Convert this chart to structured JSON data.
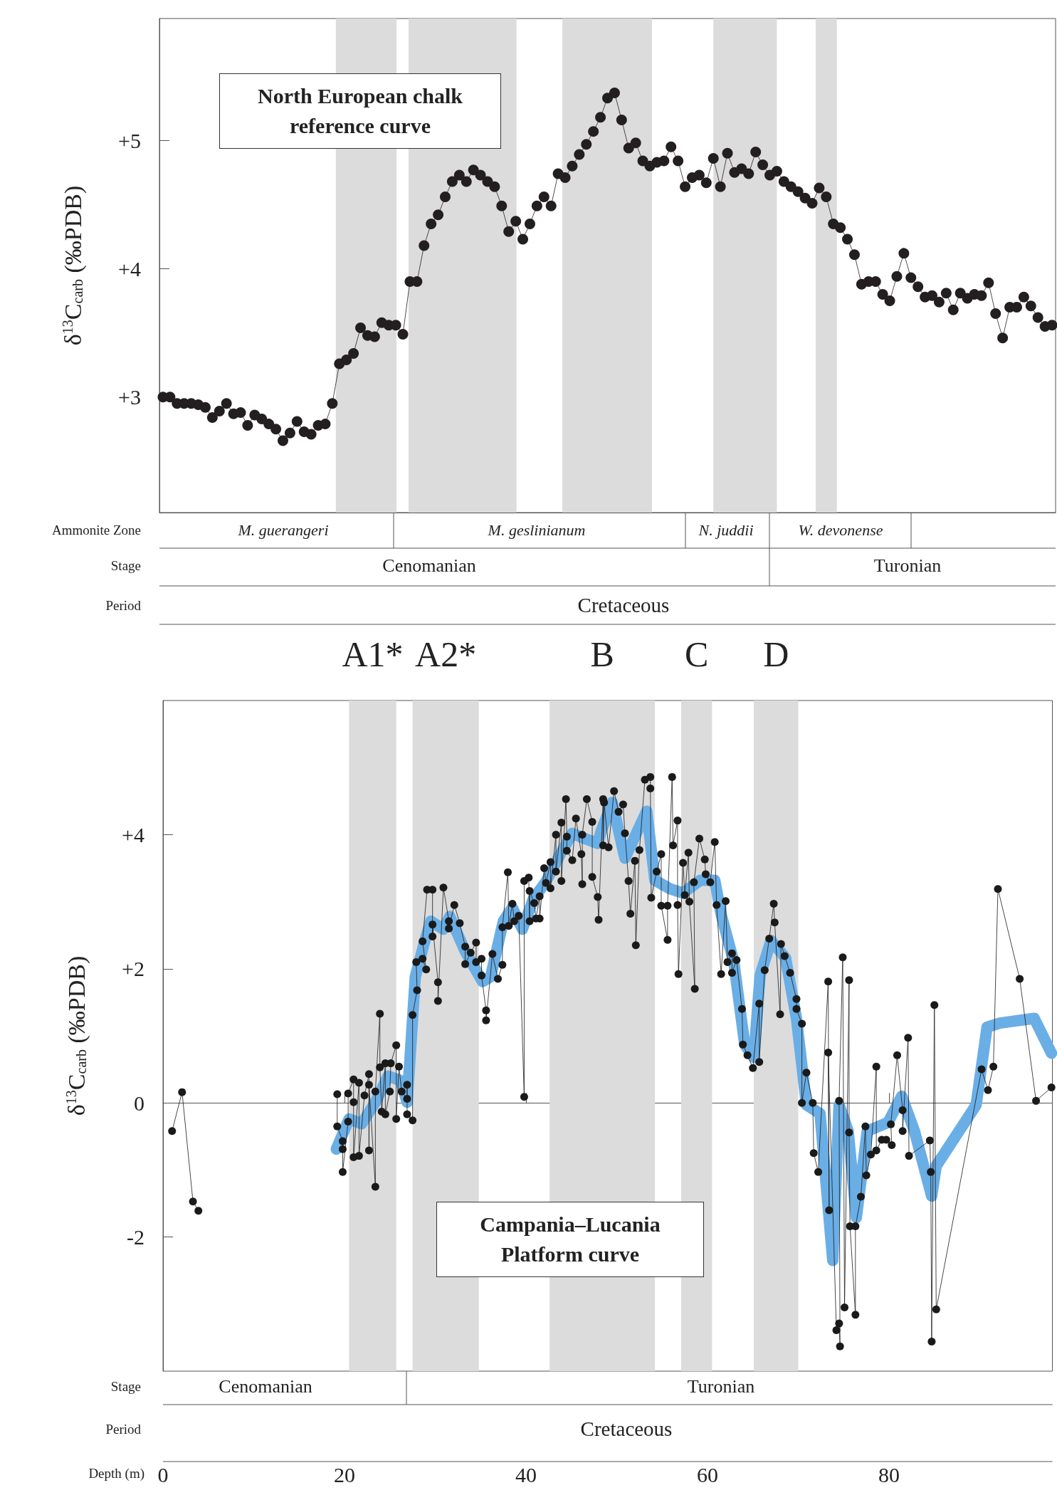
{
  "chart_data": [
    {
      "type": "line",
      "title": "North European chalk reference curve",
      "ylabel": "δ$^{13}$C$_{carb}$ (‰PDB)",
      "categories": [
        null,
        null,
        null,
        null,
        null,
        null,
        null,
        null,
        null,
        null,
        null,
        null,
        null,
        null,
        null,
        null,
        null,
        null,
        null,
        null,
        null,
        null,
        null,
        null,
        null,
        null,
        null,
        null,
        null,
        null,
        null,
        null,
        null,
        null,
        null,
        null,
        null,
        null,
        null,
        null,
        null,
        null,
        null,
        null,
        null,
        null,
        null,
        null,
        null,
        null,
        null,
        null,
        null,
        null,
        null,
        null,
        null,
        null,
        null,
        null,
        null,
        null,
        null,
        null,
        null,
        null,
        null,
        null,
        null,
        null,
        null,
        null,
        null,
        null,
        null,
        null,
        null,
        null,
        null,
        null,
        null,
        null,
        null,
        null,
        null,
        null,
        null,
        null,
        null,
        null,
        null,
        null,
        null,
        null,
        null,
        null,
        null,
        null,
        null,
        null,
        null,
        null,
        null,
        null,
        null,
        null,
        null,
        null,
        null,
        null,
        null,
        null,
        null,
        null,
        null,
        null,
        null,
        null,
        null,
        null,
        null,
        null,
        null,
        null,
        null,
        null,
        null
      ],
      "ylim": [
        2.1,
        5.95
      ],
      "yticks": [
        {
          "value": 3,
          "label": "+3"
        },
        {
          "value": 4,
          "label": "+4"
        },
        {
          "value": 5,
          "label": "+5"
        }
      ],
      "tick_labels": "y",
      "marker": "circle",
      "line_style": "solid",
      "series": [
        {
          "color": "#231f20",
          "values": [
            3.0,
            3.0,
            2.95,
            2.95,
            2.95,
            2.94,
            2.92,
            2.84,
            2.89,
            2.95,
            2.87,
            2.88,
            2.78,
            2.86,
            2.83,
            2.79,
            2.75,
            2.66,
            2.72,
            2.81,
            2.73,
            2.71,
            2.78,
            2.79,
            2.95,
            3.26,
            3.29,
            3.34,
            3.54,
            3.48,
            3.47,
            3.58,
            3.56,
            3.56,
            3.49,
            3.9,
            3.9,
            4.18,
            4.35,
            4.42,
            4.56,
            4.68,
            4.73,
            4.68,
            4.77,
            4.73,
            4.68,
            4.64,
            4.49,
            4.29,
            4.37,
            4.23,
            4.35,
            4.49,
            4.56,
            4.49,
            4.74,
            4.71,
            4.8,
            4.89,
            4.97,
            5.07,
            5.18,
            5.33,
            5.37,
            5.16,
            4.94,
            4.98,
            4.84,
            4.8,
            4.83,
            4.84,
            4.95,
            4.84,
            4.64,
            4.71,
            4.73,
            4.67,
            4.86,
            4.64,
            4.9,
            4.75,
            4.78,
            4.74,
            4.91,
            4.81,
            4.73,
            4.76,
            4.68,
            4.64,
            4.6,
            4.55,
            4.51,
            4.63,
            4.56,
            4.35,
            4.32,
            4.23,
            4.11,
            3.88,
            3.9,
            3.9,
            3.8,
            3.75,
            3.94,
            4.12,
            3.93,
            3.86,
            3.78,
            3.79,
            3.74,
            3.81,
            3.68,
            3.81,
            3.77,
            3.8,
            3.79,
            3.89,
            3.65,
            3.46,
            3.7,
            3.7,
            3.78,
            3.71,
            3.62,
            3.55,
            3.56
          ]
        }
      ],
      "annotations": [
        "Ammonite Zone",
        "M. guerangeri",
        "M. geslinianum",
        "N. juddii",
        "W. devonense",
        "Stage",
        "Cenomanian",
        "Turonian",
        "Period",
        "Cretaceous"
      ]
    },
    {
      "type": "line",
      "title": "Campania–Lucania Platform curve",
      "xlabel": "Depth (m)",
      "ylabel": "δ$^{13}$C$_{carb}$ (‰PDB)",
      "xlim": [
        0,
        98
      ],
      "xticks": [
        0,
        20,
        40,
        60,
        80
      ],
      "ylim": [
        -4,
        6
      ],
      "yticks": [
        {
          "value": -2,
          "label": "-2"
        },
        0,
        {
          "value": 2,
          "label": "+2"
        },
        {
          "value": 4,
          "label": "+4"
        }
      ],
      "marker": "circle",
      "line_style": "solid",
      "series": [
        {
          "color": "#6aaee6",
          "marker": "none",
          "x": [
            19.1,
            20.5,
            21.9,
            23.4,
            24.8,
            26.2,
            26.9,
            27.4,
            27.8,
            28.8,
            29.5,
            30.9,
            31.6,
            33.3,
            35.2,
            36.1,
            37.5,
            38.5,
            39.6,
            40.8,
            42.2,
            43.9,
            45.1,
            46.5,
            47.9,
            48.3,
            49.5,
            50.9,
            53.3,
            54.2,
            55.9,
            57.3,
            59.2,
            60.8,
            61.5,
            62.9,
            64.1,
            65.1,
            65.8,
            67.0,
            68.6,
            69.8,
            70.9,
            72.4,
            73.8,
            74.5,
            75.5,
            76.4,
            77.6,
            79.9,
            81.4,
            82.8,
            84.7,
            85.2,
            89.6,
            90.8,
            92.2,
            96.0,
            97.9
          ],
          "values": [
            -0.69,
            -0.24,
            -0.31,
            0.01,
            0.4,
            0.33,
            0.01,
            1.04,
            1.88,
            2.39,
            2.71,
            2.59,
            2.78,
            2.26,
            1.81,
            1.88,
            2.71,
            2.91,
            2.59,
            3.04,
            3.3,
            3.74,
            4.02,
            3.94,
            3.87,
            4.06,
            4.48,
            3.65,
            4.35,
            3.32,
            3.19,
            3.13,
            3.32,
            3.32,
            2.81,
            2.1,
            0.87,
            0.68,
            1.9,
            2.42,
            2.16,
            1.26,
            -0.03,
            -0.16,
            -2.35,
            -0.03,
            -0.42,
            -1.71,
            -0.42,
            -0.29,
            0.1,
            -0.42,
            -1.39,
            -0.94,
            -0.03,
            1.13,
            1.19,
            1.26,
            0.74
          ]
        },
        {
          "color": "#1a1a1a",
          "x": [
            1.0,
            2.1,
            3.3,
            3.9,
            10,
            19.2,
            19.2,
            19.8,
            19.8,
            19.8,
            20.4,
            20.4,
            21.0,
            21.0,
            21.0,
            21.6,
            21.6,
            22.2,
            22.7,
            22.7,
            22.7,
            23.4,
            23.4,
            23.9,
            23.9,
            24.1,
            24.5,
            24.5,
            25.0,
            25.1,
            25.7,
            25.7,
            26.0,
            26.3,
            26.9,
            26.9,
            26.9,
            27.5,
            27.5,
            28.0,
            27.9,
            28.6,
            29.0,
            28.6,
            29.1,
            29.7,
            29.7,
            29.7,
            30.3,
            30.3,
            30.9,
            31.5,
            31.5,
            32.1,
            32.7,
            33.3,
            33.3,
            33.9,
            34.5,
            34.5,
            35.1,
            35.1,
            35.6,
            35.6,
            36.3,
            36.9,
            37.4,
            37.4,
            38.0,
            38.1,
            38.5,
            38.7,
            39.2,
            39.8,
            39.8,
            40.3,
            40.4,
            40.4,
            40.9,
            41.1,
            41.5,
            41.5,
            42.0,
            42.2,
            42.7,
            42.7,
            43.3,
            43.3,
            43.9,
            43.9,
            44.4,
            44.5,
            44.5,
            45.1,
            45.5,
            46.1,
            46.2,
            46.2,
            46.7,
            47.3,
            47.3,
            47.9,
            48.0,
            48.5,
            48.5,
            48.6,
            49.1,
            49.7,
            50.2,
            50.7,
            50.9,
            51.3,
            51.5,
            52.0,
            52.1,
            52.5,
            53.1,
            53.7,
            53.7,
            53.8,
            54.4,
            54.9,
            54.9,
            55.6,
            55.6,
            56.1,
            56.2,
            56.7,
            56.7,
            56.8,
            57.3,
            57.5,
            57.9,
            58.0,
            58.6,
            58.5,
            59.1,
            59.7,
            59.8,
            60.3,
            60.8,
            61.0,
            61.5,
            62.0,
            62.2,
            62.7,
            62.7,
            63.2,
            63.8,
            63.9,
            64.4,
            65.0,
            65.7,
            65.7,
            66.3,
            66.8,
            67.3,
            67.4,
            68.0,
            68.1,
            68.5,
            69.1,
            69.8,
            69.8,
            70.4,
            70.4,
            70.9,
            71.6,
            71.7,
            72.2,
            73.3,
            73.4,
            73.3,
            74.2,
            74.5,
            74.6,
            74.5,
            74.9,
            75.1,
            75.6,
            75.6,
            75.7,
            76.3,
            76.3,
            76.9,
            77.4,
            77.5,
            78.0,
            78.6,
            78.6,
            79.2,
            79.7,
            80.3,
            80.2,
            80.9,
            81.5,
            81.5,
            82.1,
            82.2,
            84.5,
            84.6,
            84.7,
            85.0,
            85.2,
            90.2,
            90.9,
            91.5,
            92.0,
            94.4,
            96.2,
            97.9
          ],
          "values": [
            -0.42,
            0.16,
            -1.47,
            -1.61,
            null,
            0.13,
            -0.35,
            -0.57,
            -0.69,
            -1.03,
            -0.28,
            0.14,
            0.35,
            0.01,
            -0.81,
            0.3,
            -0.79,
            0.11,
            0.43,
            -0.71,
            0.27,
            -1.25,
            0.17,
            1.33,
            0.53,
            -0.13,
            0.59,
            -0.17,
            0.17,
            0.59,
            0.86,
            -0.24,
            0.54,
            0.17,
            0.06,
            0.27,
            -0.17,
            -0.26,
            1.31,
            1.68,
            2.1,
            2.15,
            1.99,
            2.41,
            3.18,
            3.18,
            2.48,
            2.66,
            1.8,
            1.52,
            3.21,
            2.71,
            2.6,
            2.95,
            2.68,
            2.33,
            2.07,
            2.24,
            2.39,
            2.1,
            2.15,
            1.9,
            1.38,
            1.23,
            2.22,
            1.85,
            2.06,
            2.62,
            3.44,
            2.64,
            2.97,
            2.71,
            2.79,
            0.09,
            3.31,
            3.36,
            2.71,
            3.16,
            2.98,
            2.75,
            3.08,
            2.75,
            3.5,
            3.28,
            3.59,
            3.2,
            4.0,
            3.45,
            4.18,
            3.31,
            4.53,
            3.97,
            3.76,
            3.62,
            4.24,
            3.71,
            3.26,
            4.0,
            4.53,
            4.19,
            3.37,
            3.07,
            2.73,
            4.53,
            3.84,
            4.48,
            3.81,
            4.65,
            4.34,
            4.45,
            4.02,
            3.31,
            2.82,
            3.61,
            2.35,
            3.77,
            4.82,
            4.86,
            4.69,
            3.06,
            3.45,
            3.71,
            2.94,
            2.43,
            2.94,
            4.86,
            3.84,
            4.21,
            2.95,
            1.92,
            3.58,
            3.1,
            3.73,
            3.0,
            1.7,
            3.29,
            3.94,
            3.63,
            3.41,
            3.29,
            3.89,
            2.95,
            1.92,
            3.01,
            2.1,
            2.23,
            1.94,
            2.13,
            1.4,
            0.87,
            0.71,
            0.52,
            1.48,
            0.61,
            1.98,
            2.45,
            2.97,
            2.69,
            1.32,
            2.37,
            2.19,
            1.94,
            1.55,
            1.4,
            1.18,
            0.0,
            0.45,
            0.0,
            -0.75,
            -1.03,
            1.81,
            -1.6,
            0.75,
            -3.39,
            -3.29,
            -3.63,
            0.03,
            2.17,
            -3.05,
            1.83,
            -0.44,
            -1.84,
            -3.16,
            -1.84,
            -1.4,
            -0.35,
            -1.08,
            -0.77,
            0.54,
            -0.71,
            -0.55,
            -0.55,
            -0.63,
            -0.32,
            0.71,
            -0.11,
            -0.42,
            0.97,
            -0.79,
            -0.56,
            -1.03,
            -3.56,
            1.46,
            -3.08,
            0.5,
            0.19,
            0.54,
            3.19,
            1.85,
            0.03,
            0.23
          ]
        }
      ],
      "bands": [
        {
          "axis": "x",
          "from": 20.5,
          "to": 25.7,
          "label": "A1*",
          "color": "#dcdcdc"
        },
        {
          "axis": "x",
          "from": 27.5,
          "to": 34.8,
          "label": "A2*",
          "color": "#dcdcdc"
        },
        {
          "axis": "x",
          "from": 42.6,
          "to": 54.2,
          "label": "B",
          "color": "#dcdcdc"
        },
        {
          "axis": "x",
          "from": 57.1,
          "to": 60.5,
          "label": "C",
          "color": "#dcdcdc"
        },
        {
          "axis": "x",
          "from": 65.1,
          "to": 70.0,
          "label": "D",
          "color": "#dcdcdc"
        }
      ],
      "annotations": [
        "Stage",
        "Cenomanian",
        "Turonian",
        "Period",
        "Cretaceous"
      ]
    }
  ]
}
